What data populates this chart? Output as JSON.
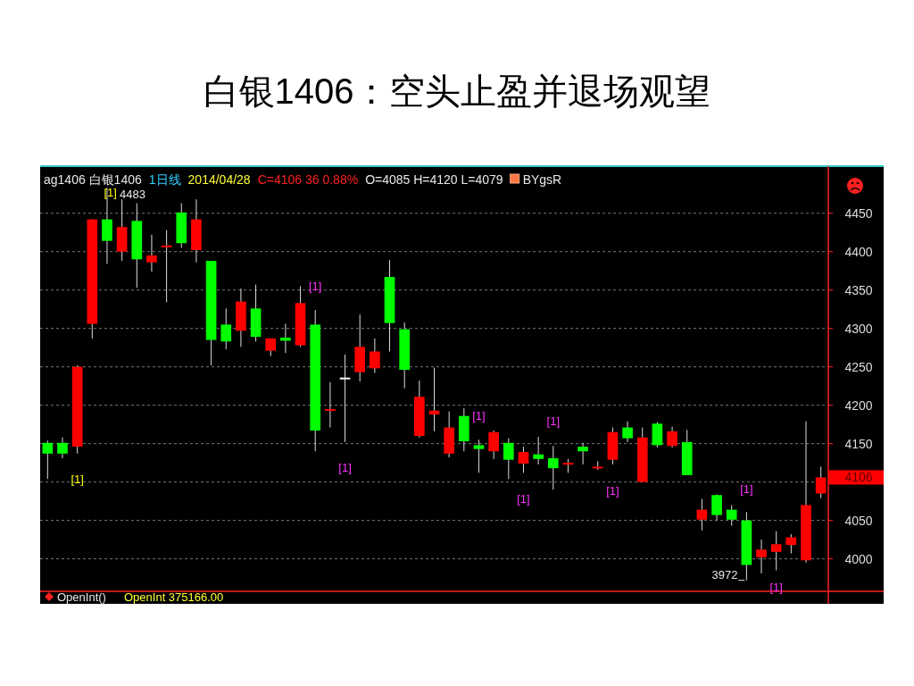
{
  "chart_data": {
    "type": "candlestick",
    "title": "白银1406：空头止盈并退场观望",
    "categories": [
      null,
      null,
      null,
      null,
      null,
      null,
      null,
      null,
      null,
      null,
      null,
      null,
      null,
      null,
      null,
      null,
      null,
      null,
      null,
      null,
      null,
      null,
      null,
      null,
      null,
      null,
      null,
      null,
      null,
      null,
      null,
      null,
      null,
      null,
      null,
      null,
      null,
      null,
      null,
      null,
      null,
      null,
      null,
      null,
      null,
      null,
      null,
      null,
      null,
      null,
      null,
      null,
      null
    ],
    "ohlc": [
      [
        4151,
        4154,
        4104,
        4137
      ],
      [
        4151,
        4158,
        4131,
        4137
      ],
      [
        4146,
        4252,
        4137,
        4250
      ],
      [
        4306,
        4442,
        4287,
        4442
      ],
      [
        4442,
        4483,
        4384,
        4414
      ],
      [
        4400,
        4468,
        4388,
        4432
      ],
      [
        4440,
        4463,
        4353,
        4390
      ],
      [
        4386,
        4422,
        4374,
        4395
      ],
      [
        4406,
        4428,
        4334,
        4408
      ],
      [
        4451,
        4463,
        4405,
        4411
      ],
      [
        4402,
        4468,
        4386,
        4442
      ],
      [
        4388,
        4388,
        4252,
        4285
      ],
      [
        4305,
        4326,
        4273,
        4283
      ],
      [
        4297,
        4352,
        4276,
        4335
      ],
      [
        4326,
        4357,
        4283,
        4289
      ],
      [
        4271,
        4287,
        4264,
        4287
      ],
      [
        4288,
        4306,
        4268,
        4284
      ],
      [
        4278,
        4355,
        4276,
        4333
      ],
      [
        4305,
        4324,
        4140,
        4167
      ],
      [
        4193,
        4230,
        4171,
        4195
      ],
      [
        4234,
        4266,
        4152,
        4236
      ],
      [
        4243,
        4318,
        4231,
        4276
      ],
      [
        4248,
        4287,
        4242,
        4270
      ],
      [
        4367,
        4389,
        4270,
        4307
      ],
      [
        4299,
        4308,
        4222,
        4246
      ],
      [
        4160,
        4232,
        4158,
        4211
      ],
      [
        4188,
        4249,
        4166,
        4193
      ],
      [
        4137,
        4192,
        4132,
        4171
      ],
      [
        4186,
        4196,
        4140,
        4153
      ],
      [
        4148,
        4155,
        4112,
        4143
      ],
      [
        4140,
        4167,
        4130,
        4165
      ],
      [
        4151,
        4157,
        4104,
        4129
      ],
      [
        4124,
        4146,
        4112,
        4139
      ],
      [
        4136,
        4159,
        4123,
        4130
      ],
      [
        4131,
        4147,
        4090,
        4118
      ],
      [
        4124,
        4130,
        4112,
        4125
      ],
      [
        4146,
        4151,
        4123,
        4140
      ],
      [
        4118,
        4127,
        4116,
        4120
      ],
      [
        4129,
        4171,
        4123,
        4165
      ],
      [
        4171,
        4179,
        4152,
        4157
      ],
      [
        4100,
        4171,
        4100,
        4158
      ],
      [
        4176,
        4178,
        4145,
        4148
      ],
      [
        4147,
        4172,
        4145,
        4166
      ],
      [
        4152,
        4168,
        4109,
        4109
      ],
      [
        4051,
        4078,
        4037,
        4064
      ],
      [
        4083,
        4084,
        4050,
        4057
      ],
      [
        4064,
        4070,
        4043,
        4051
      ],
      [
        4050,
        4061,
        3972,
        3992
      ],
      [
        4002,
        4025,
        3981,
        4012
      ],
      [
        4009,
        4036,
        3985,
        4019
      ],
      [
        4018,
        4032,
        4007,
        4028
      ],
      [
        3998,
        4179,
        3995,
        4070
      ],
      [
        4085,
        4120,
        4079,
        4106
      ]
    ],
    "colors": [
      "#00ff00",
      "#00ff00",
      "#ff0000",
      "#ff0000",
      "#00ff00",
      "#ff0000",
      "#00ff00",
      "#ff0000",
      "#ff0000",
      "#00ff00",
      "#ff0000",
      "#00ff00",
      "#00ff00",
      "#ff0000",
      "#00ff00",
      "#ff0000",
      "#00ff00",
      "#ff0000",
      "#00ff00",
      "#ff0000",
      "#ffffff",
      "#ff0000",
      "#ff0000",
      "#00ff00",
      "#00ff00",
      "#ff0000",
      "#ff0000",
      "#ff0000",
      "#00ff00",
      "#00ff00",
      "#ff0000",
      "#00ff00",
      "#ff0000",
      "#00ff00",
      "#00ff00",
      "#ff0000",
      "#00ff00",
      "#ff0000",
      "#ff0000",
      "#00ff00",
      "#ff0000",
      "#00ff00",
      "#ff0000",
      "#00ff00",
      "#ff0000",
      "#00ff00",
      "#00ff00",
      "#00ff00",
      "#ff0000",
      "#ff0000",
      "#ff0000",
      "#ff0000",
      "#ff0000"
    ],
    "ylim": [
      3960,
      4509
    ],
    "yticks": [
      4000,
      4050,
      {
        "value": 4100,
        "label": null
      },
      4150,
      4200,
      4250,
      4300,
      4350,
      4400,
      4450
    ],
    "grid": "y",
    "annotations": [
      "ag1406 白银1406",
      "1日线",
      "2014/04/28",
      "C=4106 36 0.88%",
      "O=4085 H=4120 L=4079",
      "BYgsR",
      "4483",
      "3972",
      "4106",
      "[1]",
      "[1]",
      "[1]",
      "[1]",
      "[1]",
      "[1]",
      "[1]",
      "[1]",
      "[1]",
      "[1]",
      "OpenInt()",
      "OpenInt 375166.00"
    ]
  }
}
